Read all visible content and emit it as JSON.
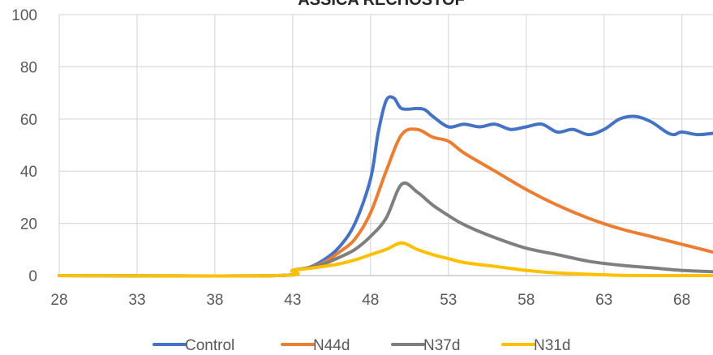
{
  "chart_data": {
    "type": "line",
    "title": "ASSICA RECHOSTOF",
    "xlabel": "",
    "ylabel": "",
    "xlim": [
      28,
      70
    ],
    "ylim": [
      0,
      100
    ],
    "x_ticks": [
      28,
      33,
      38,
      43,
      48,
      53,
      58,
      63,
      68
    ],
    "y_ticks": [
      0,
      20,
      40,
      60,
      80,
      100
    ],
    "grid": true,
    "legend_position": "bottom",
    "series": [
      {
        "name": "Control",
        "color": "#4472C4",
        "points": [
          [
            28,
            0
          ],
          [
            42,
            0
          ],
          [
            43,
            2
          ],
          [
            44,
            3
          ],
          [
            45,
            6
          ],
          [
            46,
            11
          ],
          [
            47,
            20
          ],
          [
            48,
            37
          ],
          [
            48.5,
            55
          ],
          [
            49,
            67
          ],
          [
            49.5,
            68
          ],
          [
            50,
            64
          ],
          [
            51,
            64
          ],
          [
            51.5,
            63.5
          ],
          [
            52,
            61
          ],
          [
            53,
            57
          ],
          [
            54,
            58
          ],
          [
            55,
            57
          ],
          [
            56,
            58
          ],
          [
            57,
            56
          ],
          [
            58,
            57
          ],
          [
            59,
            58
          ],
          [
            60,
            55
          ],
          [
            61,
            56
          ],
          [
            62,
            54
          ],
          [
            63,
            56
          ],
          [
            64,
            60
          ],
          [
            65,
            61
          ],
          [
            66,
            59
          ],
          [
            67,
            55
          ],
          [
            67.5,
            54
          ],
          [
            68,
            55
          ],
          [
            69,
            54
          ],
          [
            70,
            54.5
          ]
        ]
      },
      {
        "name": "N44d",
        "color": "#ED7D31",
        "points": [
          [
            28,
            0
          ],
          [
            42,
            0
          ],
          [
            43,
            2
          ],
          [
            44,
            3
          ],
          [
            45,
            5
          ],
          [
            46,
            9
          ],
          [
            47,
            14
          ],
          [
            48,
            24
          ],
          [
            49,
            40
          ],
          [
            50,
            54
          ],
          [
            51,
            56
          ],
          [
            52,
            53
          ],
          [
            53,
            51.5
          ],
          [
            54,
            47
          ],
          [
            56,
            40
          ],
          [
            58,
            33
          ],
          [
            60,
            27
          ],
          [
            62,
            22
          ],
          [
            64,
            18
          ],
          [
            66,
            15
          ],
          [
            68,
            12
          ],
          [
            70,
            9
          ]
        ]
      },
      {
        "name": "N37d",
        "color": "#7F7F7F",
        "points": [
          [
            28,
            0
          ],
          [
            42,
            0
          ],
          [
            43,
            2
          ],
          [
            44,
            3
          ],
          [
            45,
            4.5
          ],
          [
            46,
            7
          ],
          [
            47,
            10
          ],
          [
            48,
            15
          ],
          [
            49,
            22
          ],
          [
            50,
            35
          ],
          [
            51,
            32
          ],
          [
            52,
            27
          ],
          [
            53,
            23
          ],
          [
            54,
            19.5
          ],
          [
            56,
            14.5
          ],
          [
            58,
            10.5
          ],
          [
            60,
            8
          ],
          [
            62,
            5.5
          ],
          [
            64,
            4
          ],
          [
            66,
            3
          ],
          [
            68,
            2
          ],
          [
            70,
            1.5
          ]
        ]
      },
      {
        "name": "N31d",
        "color": "#FFC000",
        "points": [
          [
            28,
            0
          ],
          [
            42,
            0
          ],
          [
            43,
            2
          ],
          [
            44,
            2.7
          ],
          [
            45,
            3.5
          ],
          [
            46,
            4.5
          ],
          [
            47,
            6
          ],
          [
            48,
            8
          ],
          [
            49,
            10
          ],
          [
            50,
            12.5
          ],
          [
            51,
            10
          ],
          [
            52,
            8
          ],
          [
            53,
            6.5
          ],
          [
            54,
            5
          ],
          [
            56,
            3.5
          ],
          [
            58,
            2
          ],
          [
            60,
            1
          ],
          [
            62,
            0.5
          ],
          [
            64,
            0.1
          ],
          [
            66,
            0
          ],
          [
            70,
            0
          ]
        ]
      }
    ]
  }
}
